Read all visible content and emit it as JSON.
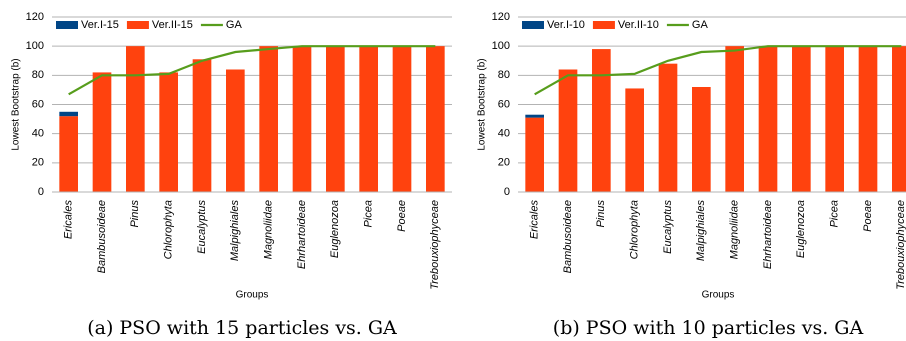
{
  "chart_data": [
    {
      "type": "bar",
      "caption": "(a) PSO with 15 particles vs. GA",
      "y_label": "Lowest Bootstrap (b)",
      "x_label": "Groups",
      "categories": [
        "Ericales",
        "Bambusoideae",
        "Pinus",
        "Chlorophyta",
        "Eucalyptus",
        "Malpighiales",
        "Magnoliidae",
        "Ehrhartoideae",
        "Euglenozoa",
        "Picea",
        "Poeae",
        "Trebouxiophyceae"
      ],
      "stacked": true,
      "grid": true,
      "legend": "top-left",
      "ylim": [
        0,
        120
      ],
      "yticks": [
        0,
        20,
        40,
        60,
        80,
        100,
        120
      ],
      "series": [
        {
          "name": "Ver.I-15",
          "type": "bar",
          "color": "#004586",
          "values": [
            3,
            0,
            0,
            0,
            0,
            0,
            0,
            0,
            0,
            0,
            0,
            0
          ]
        },
        {
          "name": "Ver.II-15",
          "type": "bar",
          "color": "#ff420e",
          "values": [
            52,
            82,
            100,
            82,
            91,
            84,
            100,
            100,
            100,
            100,
            100,
            100
          ]
        },
        {
          "name": "GA",
          "type": "line",
          "color": "#579d1c",
          "values": [
            67,
            80,
            80,
            81,
            90,
            96,
            98,
            100,
            100,
            100,
            100,
            100
          ]
        }
      ]
    },
    {
      "type": "bar",
      "caption": "(b) PSO with 10 particles vs. GA",
      "y_label": "Lowest Bootstrap (b)",
      "x_label": "Groups",
      "categories": [
        "Ericales",
        "Bambusoideae",
        "Pinus",
        "Chlorophyta",
        "Eucalyptus",
        "Malpighiales",
        "Magnoliidae",
        "Ehrhartoideae",
        "Euglenozoa",
        "Picea",
        "Poeae",
        "Trebouxiophyceae"
      ],
      "stacked": true,
      "grid": true,
      "legend": "top-left",
      "ylim": [
        0,
        120
      ],
      "yticks": [
        0,
        20,
        40,
        60,
        80,
        100,
        120
      ],
      "series": [
        {
          "name": "Ver.I-10",
          "type": "bar",
          "color": "#004586",
          "values": [
            2,
            0,
            0,
            0,
            0,
            0,
            0,
            0,
            0,
            0,
            0,
            0
          ]
        },
        {
          "name": "Ver.II-10",
          "type": "bar",
          "color": "#ff420e",
          "values": [
            51,
            84,
            98,
            71,
            88,
            72,
            100,
            100,
            100,
            100,
            100,
            100
          ]
        },
        {
          "name": "GA",
          "type": "line",
          "color": "#579d1c",
          "values": [
            67,
            80,
            80,
            81,
            90,
            96,
            97,
            100,
            100,
            100,
            100,
            100
          ]
        }
      ]
    }
  ]
}
